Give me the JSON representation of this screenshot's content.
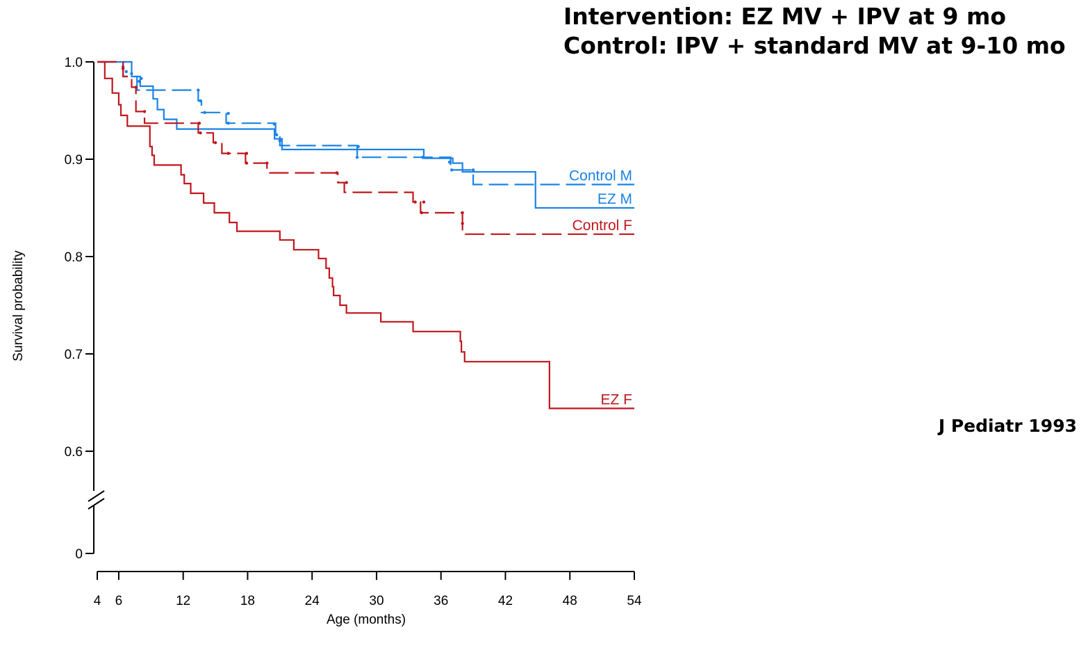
{
  "title_lines": [
    "Intervention: EZ MV + IPV at 9 mo",
    "Control: IPV + standard MV at 9-10 mo"
  ],
  "citation": "J Pediatr 1993",
  "chart_data": {
    "type": "line",
    "step": true,
    "xlabel": "Age (months)",
    "ylabel": "Survival probability",
    "xlim": [
      4,
      54
    ],
    "xticks": [
      4,
      6,
      12,
      18,
      24,
      30,
      36,
      42,
      48,
      54
    ],
    "ylim": [
      0.55,
      1.0
    ],
    "yticks": [
      1.0,
      0.9,
      0.8,
      0.7,
      0.6
    ],
    "ytick_labels": [
      "1.0",
      "0.9",
      "0.8",
      "0.7",
      "0.6"
    ],
    "y_zero_label": "0",
    "axis_break": "y",
    "grid": false,
    "series": [
      {
        "name": "Control M",
        "color": "#1a82e6",
        "dash": "dashed",
        "points": [
          [
            4,
            1.0
          ],
          [
            6.4,
            0.985
          ],
          [
            7.7,
            0.971
          ],
          [
            13.4,
            0.96
          ],
          [
            13.7,
            0.948
          ],
          [
            16.0,
            0.937
          ],
          [
            20.6,
            0.925
          ],
          [
            21.0,
            0.914
          ],
          [
            28.2,
            0.902
          ],
          [
            36.9,
            0.889
          ],
          [
            39.0,
            0.874
          ],
          [
            54,
            0.874
          ]
        ],
        "censored": [
          [
            6.4,
            0.995
          ],
          [
            7.2,
            0.988
          ],
          [
            7.9,
            0.98
          ],
          [
            13.4,
            0.971
          ],
          [
            13.6,
            0.96
          ],
          [
            14.0,
            0.948
          ],
          [
            16.2,
            0.947
          ],
          [
            16.2,
            0.937
          ],
          [
            20.5,
            0.936
          ],
          [
            20.7,
            0.925
          ],
          [
            21.0,
            0.919
          ],
          [
            28.3,
            0.913
          ],
          [
            28.2,
            0.902
          ],
          [
            34.3,
            0.902
          ],
          [
            36.8,
            0.897
          ],
          [
            37.0,
            0.889
          ],
          [
            39.0,
            0.889
          ]
        ]
      },
      {
        "name": "EZ M",
        "color": "#1a82e6",
        "dash": "solid",
        "points": [
          [
            4,
            1.0
          ],
          [
            7.2,
            0.985
          ],
          [
            8.0,
            0.975
          ],
          [
            9.2,
            0.962
          ],
          [
            9.6,
            0.951
          ],
          [
            10.2,
            0.941
          ],
          [
            11.4,
            0.931
          ],
          [
            20.5,
            0.921
          ],
          [
            21.2,
            0.91
          ],
          [
            34.4,
            0.901
          ],
          [
            37.1,
            0.896
          ],
          [
            38.0,
            0.887
          ],
          [
            44.8,
            0.85
          ],
          [
            54,
            0.85
          ]
        ],
        "censored": [
          [
            6.7,
            0.99
          ],
          [
            8.1,
            0.983
          ]
        ]
      },
      {
        "name": "Control F",
        "color": "#c0161c",
        "dash": "dashed",
        "points": [
          [
            4,
            1.0
          ],
          [
            6.4,
            0.985
          ],
          [
            7.2,
            0.974
          ],
          [
            7.6,
            0.949
          ],
          [
            8.4,
            0.937
          ],
          [
            13.4,
            0.927
          ],
          [
            14.8,
            0.917
          ],
          [
            15.6,
            0.906
          ],
          [
            17.8,
            0.896
          ],
          [
            19.8,
            0.886
          ],
          [
            26.4,
            0.876
          ],
          [
            27.0,
            0.866
          ],
          [
            33.4,
            0.856
          ],
          [
            34.1,
            0.845
          ],
          [
            38.0,
            0.823
          ],
          [
            54,
            0.823
          ]
        ],
        "censored": [
          [
            6.4,
            0.993
          ],
          [
            7.6,
            0.974
          ],
          [
            8.4,
            0.949
          ],
          [
            13.5,
            0.937
          ],
          [
            13.6,
            0.927
          ],
          [
            15.0,
            0.917
          ],
          [
            16.2,
            0.906
          ],
          [
            17.9,
            0.906
          ],
          [
            17.9,
            0.896
          ],
          [
            19.8,
            0.896
          ],
          [
            26.3,
            0.886
          ],
          [
            27.2,
            0.876
          ],
          [
            33.6,
            0.856
          ],
          [
            34.4,
            0.856
          ],
          [
            34.2,
            0.845
          ],
          [
            38.0,
            0.845
          ],
          [
            38.0,
            0.834
          ]
        ]
      },
      {
        "name": "EZ F",
        "color": "#c0161c",
        "dash": "solid",
        "points": [
          [
            4,
            1.0
          ],
          [
            4.7,
            0.983
          ],
          [
            5.4,
            0.968
          ],
          [
            6.0,
            0.956
          ],
          [
            6.2,
            0.945
          ],
          [
            6.8,
            0.934
          ],
          [
            8.9,
            0.913
          ],
          [
            9.1,
            0.904
          ],
          [
            9.3,
            0.894
          ],
          [
            11.8,
            0.884
          ],
          [
            12.1,
            0.875
          ],
          [
            12.7,
            0.865
          ],
          [
            13.9,
            0.855
          ],
          [
            14.9,
            0.845
          ],
          [
            16.3,
            0.835
          ],
          [
            17.0,
            0.826
          ],
          [
            21.0,
            0.817
          ],
          [
            22.3,
            0.807
          ],
          [
            24.6,
            0.798
          ],
          [
            25.3,
            0.788
          ],
          [
            25.6,
            0.778
          ],
          [
            25.9,
            0.769
          ],
          [
            26.0,
            0.76
          ],
          [
            26.6,
            0.75
          ],
          [
            27.2,
            0.742
          ],
          [
            30.4,
            0.733
          ],
          [
            33.4,
            0.723
          ],
          [
            37.8,
            0.713
          ],
          [
            37.9,
            0.702
          ],
          [
            38.2,
            0.692
          ],
          [
            46.1,
            0.644
          ],
          [
            54,
            0.644
          ]
        ],
        "censored": []
      }
    ],
    "series_label_positions": "right end of each curve"
  }
}
